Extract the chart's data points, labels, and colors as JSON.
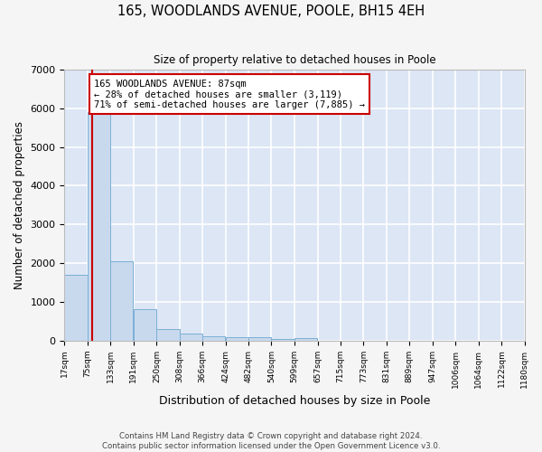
{
  "title1": "165, WOODLANDS AVENUE, POOLE, BH15 4EH",
  "title2": "Size of property relative to detached houses in Poole",
  "xlabel": "Distribution of detached houses by size in Poole",
  "ylabel": "Number of detached properties",
  "bar_color": "#c8d9ee",
  "bar_edge_color": "#7bafd4",
  "background_color": "#dce6f5",
  "grid_color": "#ffffff",
  "bins": [
    17,
    75,
    133,
    191,
    250,
    308,
    366,
    424,
    482,
    540,
    599,
    657,
    715,
    773,
    831,
    889,
    947,
    1006,
    1064,
    1122,
    1180
  ],
  "bin_labels": [
    "17sqm",
    "75sqm",
    "133sqm",
    "191sqm",
    "250sqm",
    "308sqm",
    "366sqm",
    "424sqm",
    "482sqm",
    "540sqm",
    "599sqm",
    "657sqm",
    "715sqm",
    "773sqm",
    "831sqm",
    "889sqm",
    "947sqm",
    "1006sqm",
    "1064sqm",
    "1122sqm",
    "1180sqm"
  ],
  "values": [
    1700,
    5900,
    2050,
    820,
    310,
    185,
    120,
    80,
    100,
    50,
    60,
    0,
    0,
    0,
    0,
    0,
    0,
    0,
    0,
    0
  ],
  "property_size": 87,
  "annotation_text": "165 WOODLANDS AVENUE: 87sqm\n← 28% of detached houses are smaller (3,119)\n71% of semi-detached houses are larger (7,885) →",
  "annotation_box_color": "#ffffff",
  "annotation_box_edge": "#cc0000",
  "red_line_color": "#cc0000",
  "ylim": [
    0,
    7000
  ],
  "fig_bg": "#f5f5f5",
  "footer1": "Contains HM Land Registry data © Crown copyright and database right 2024.",
  "footer2": "Contains public sector information licensed under the Open Government Licence v3.0."
}
